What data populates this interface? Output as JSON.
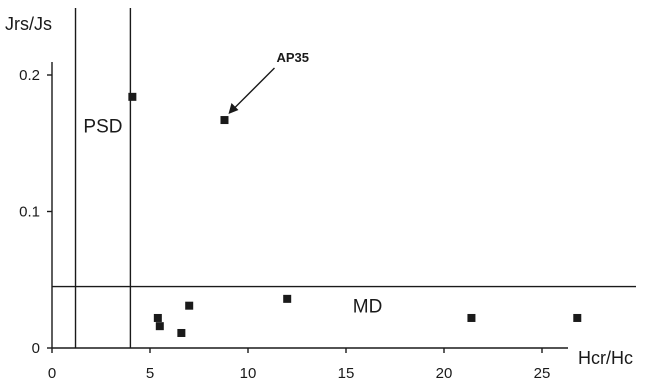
{
  "chart_data": {
    "type": "scatter",
    "title": "",
    "xlabel": "Hcr/Hc",
    "ylabel": "Jrs/Js",
    "xlim": [
      0,
      27.5
    ],
    "ylim": [
      0,
      0.21
    ],
    "x_ticks": [
      0,
      5,
      10,
      15,
      20,
      25
    ],
    "x_tick_labels": [
      "0",
      "5",
      "10",
      "15",
      "20",
      "25"
    ],
    "y_ticks": [
      0,
      0.1,
      0.2
    ],
    "y_tick_labels": [
      "0",
      "0.1",
      "0.2"
    ],
    "grid": false,
    "series": [
      {
        "marker": "square",
        "color": "#1a1a1a",
        "points": [
          {
            "x": 4.1,
            "y": 0.184
          },
          {
            "x": 8.8,
            "y": 0.167
          },
          {
            "x": 5.4,
            "y": 0.022
          },
          {
            "x": 5.5,
            "y": 0.016
          },
          {
            "x": 6.6,
            "y": 0.011
          },
          {
            "x": 7.0,
            "y": 0.031
          },
          {
            "x": 12.0,
            "y": 0.036
          },
          {
            "x": 21.4,
            "y": 0.022
          },
          {
            "x": 26.8,
            "y": 0.022
          }
        ]
      }
    ],
    "guide_lines": [
      {
        "orientation": "vertical",
        "x": 1.2
      },
      {
        "orientation": "vertical",
        "x": 4.0
      },
      {
        "orientation": "horizontal",
        "y": 0.045
      }
    ],
    "regions": [
      {
        "label": "PSD",
        "x": 2.6,
        "y": 0.158
      },
      {
        "label": "MD",
        "x": 16.1,
        "y": 0.026
      }
    ],
    "annotations": [
      {
        "text": "AP35",
        "target": {
          "x": 8.8,
          "y": 0.167
        }
      }
    ]
  }
}
